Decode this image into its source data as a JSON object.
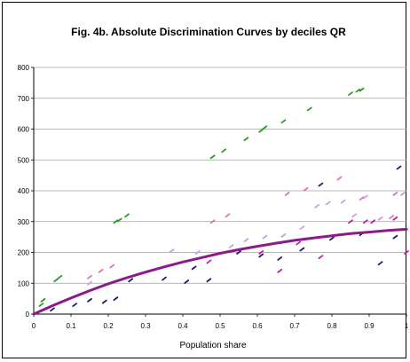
{
  "chart_data": {
    "type": "scatter",
    "title": "Fig. 4b. Absolute Discrimination Curves by deciles QR",
    "xlabel": "Population share",
    "ylabel": "",
    "xlim": [
      0,
      1
    ],
    "ylim": [
      0,
      800
    ],
    "x_ticks": [
      "0",
      "0.1",
      "0.2",
      "0.3",
      "0.4",
      "0.5",
      "0.6",
      "0.7",
      "0.8",
      "0.9",
      "1"
    ],
    "y_ticks": [
      "0",
      "100",
      "200",
      "300",
      "400",
      "500",
      "600",
      "700",
      "800"
    ],
    "grid": "horizontal",
    "legend": "none",
    "colors": {
      "curve": "#8b1a8b",
      "green": "#2a9a2a",
      "pink": "#e070c0",
      "lavender": "#c9a0e0",
      "magenta": "#c020a0",
      "navy": "#1c1c70",
      "gridline": "#a0a0a0"
    },
    "curve": {
      "x": [
        0,
        0.05,
        0.1,
        0.15,
        0.2,
        0.25,
        0.3,
        0.35,
        0.4,
        0.45,
        0.5,
        0.55,
        0.6,
        0.65,
        0.7,
        0.75,
        0.8,
        0.85,
        0.9,
        0.95,
        1
      ],
      "y": [
        0,
        27,
        52,
        76,
        98,
        118,
        136,
        153,
        169,
        183,
        197,
        209,
        220,
        230,
        239,
        247,
        254,
        261,
        266,
        271,
        275
      ]
    },
    "series": [
      {
        "color_key": "green",
        "points": [
          [
            0.02,
            30
          ],
          [
            0.025,
            45
          ],
          [
            0.06,
            110
          ],
          [
            0.07,
            120
          ],
          [
            0.22,
            300
          ],
          [
            0.23,
            305
          ],
          [
            0.25,
            320
          ],
          [
            0.48,
            510
          ],
          [
            0.51,
            530
          ],
          [
            0.57,
            568
          ],
          [
            0.61,
            595
          ],
          [
            0.62,
            605
          ],
          [
            0.67,
            625
          ],
          [
            0.74,
            665
          ],
          [
            0.85,
            715
          ],
          [
            0.87,
            725
          ],
          [
            0.88,
            728
          ]
        ]
      },
      {
        "color_key": "pink",
        "points": [
          [
            0.15,
            120
          ],
          [
            0.18,
            140
          ],
          [
            0.21,
            155
          ],
          [
            0.48,
            300
          ],
          [
            0.52,
            320
          ],
          [
            0.68,
            390
          ],
          [
            0.73,
            405
          ],
          [
            0.82,
            440
          ],
          [
            0.88,
            375
          ],
          [
            0.96,
            315
          ],
          [
            0.97,
            390
          ]
        ]
      },
      {
        "color_key": "lavender",
        "points": [
          [
            0.15,
            100
          ],
          [
            0.37,
            205
          ],
          [
            0.44,
            200
          ],
          [
            0.53,
            220
          ],
          [
            0.57,
            240
          ],
          [
            0.62,
            250
          ],
          [
            0.67,
            255
          ],
          [
            0.72,
            280
          ],
          [
            0.76,
            350
          ],
          [
            0.79,
            360
          ],
          [
            0.83,
            365
          ],
          [
            0.86,
            320
          ],
          [
            0.89,
            380
          ],
          [
            0.93,
            310
          ],
          [
            0.99,
            390
          ]
        ]
      },
      {
        "color_key": "magenta",
        "points": [
          [
            0.47,
            170
          ],
          [
            0.61,
            200
          ],
          [
            0.66,
            140
          ],
          [
            0.71,
            230
          ],
          [
            0.77,
            185
          ],
          [
            0.85,
            300
          ],
          [
            0.89,
            300
          ],
          [
            0.91,
            300
          ],
          [
            0.97,
            310
          ],
          [
            1.0,
            200
          ]
        ]
      },
      {
        "color_key": "navy",
        "points": [
          [
            0.05,
            15
          ],
          [
            0.11,
            30
          ],
          [
            0.15,
            45
          ],
          [
            0.19,
            40
          ],
          [
            0.22,
            50
          ],
          [
            0.26,
            110
          ],
          [
            0.35,
            115
          ],
          [
            0.41,
            105
          ],
          [
            0.43,
            150
          ],
          [
            0.47,
            110
          ],
          [
            0.55,
            200
          ],
          [
            0.61,
            190
          ],
          [
            0.66,
            180
          ],
          [
            0.72,
            210
          ],
          [
            0.77,
            420
          ],
          [
            0.8,
            245
          ],
          [
            0.88,
            260
          ],
          [
            0.93,
            165
          ],
          [
            0.97,
            250
          ],
          [
            0.98,
            475
          ]
        ]
      }
    ]
  }
}
